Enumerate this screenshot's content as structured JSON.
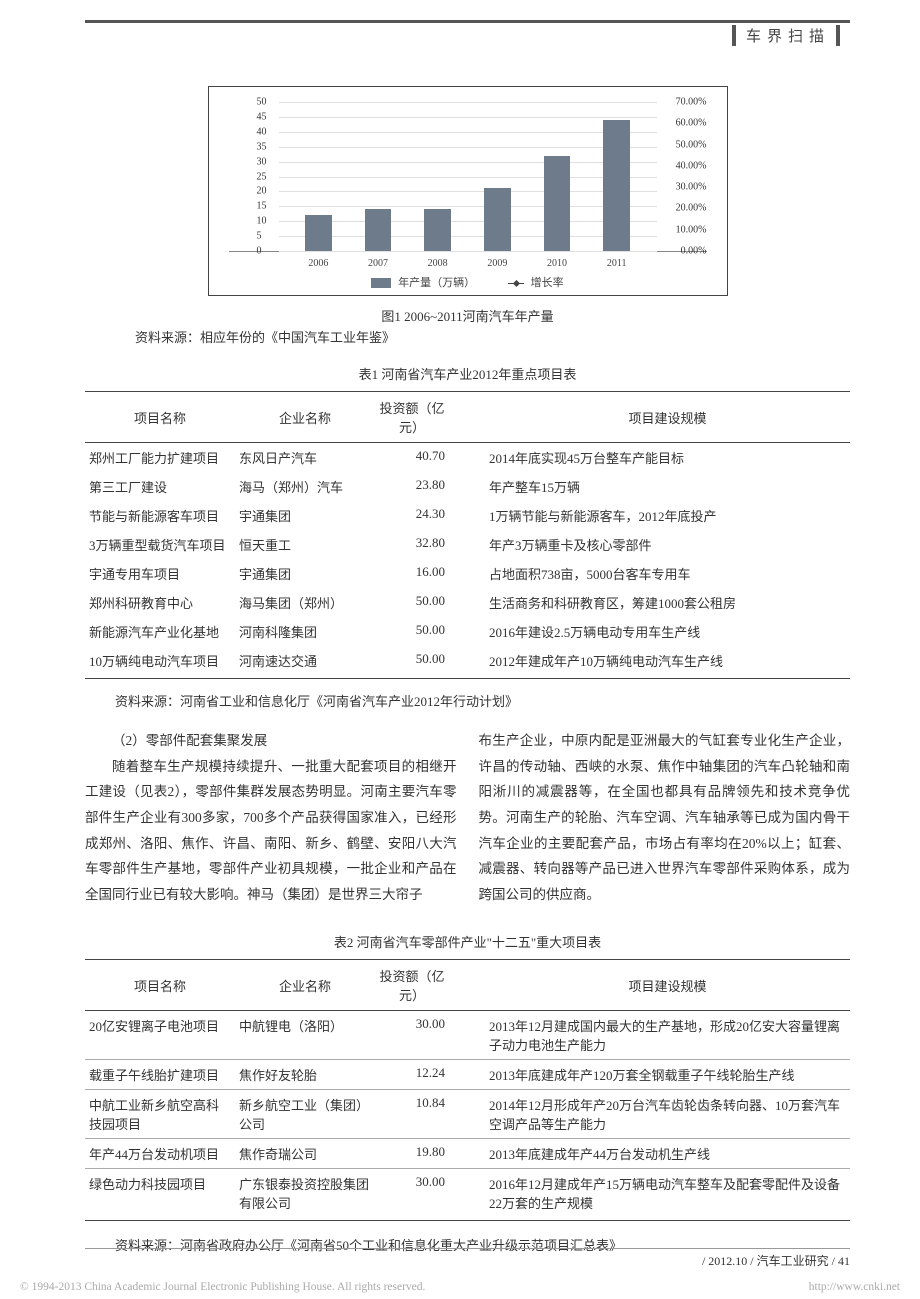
{
  "page": {
    "section_header": "车界扫描",
    "issue": "2012.10",
    "journal": "汽车工业研究",
    "page_number": "41",
    "copyright": "© 1994-2013 China Academic Journal Electronic Publishing House. All rights reserved.",
    "cnki_url": "http://www.cnki.net"
  },
  "chart1": {
    "type": "bar+line",
    "caption": "图1  2006~2011河南汽车年产量",
    "source": "资料来源：相应年份的《中国汽车工业年鉴》",
    "x_categories": [
      "2006",
      "2007",
      "2008",
      "2009",
      "2010",
      "2011"
    ],
    "left_y": {
      "min": 0,
      "max": 50,
      "step": 5
    },
    "right_y": {
      "min": 0,
      "max": 0.7,
      "step": 0.1,
      "labels": [
        "0.00%",
        "10.00%",
        "20.00%",
        "30.00%",
        "40.00%",
        "50.00%",
        "60.00%",
        "70.00%"
      ]
    },
    "bar_values": [
      12,
      14,
      14,
      21,
      32,
      44
    ],
    "bar_color": "#6e7b8b",
    "bar_width_pct": 7.5,
    "legend": {
      "bar": "年产量（万辆）",
      "line": "增长率"
    },
    "font_size": 10,
    "grid_color": "#e0e0e0",
    "border_color": "#444444",
    "background_color": "#ffffff"
  },
  "table1": {
    "title": "表1  河南省汽车产业2012年重点项目表",
    "columns": [
      "项目名称",
      "企业名称",
      "投资额（亿元）",
      "项目建设规模"
    ],
    "rows": [
      [
        "郑州工厂能力扩建项目",
        "东风日产汽车",
        "40.70",
        "2014年底实现45万台整车产能目标"
      ],
      [
        "第三工厂建设",
        "海马（郑州）汽车",
        "23.80",
        "年产整车15万辆"
      ],
      [
        "节能与新能源客车项目",
        "宇通集团",
        "24.30",
        "1万辆节能与新能源客车，2012年底投产"
      ],
      [
        "3万辆重型载货汽车项目",
        "恒天重工",
        "32.80",
        "年产3万辆重卡及核心零部件"
      ],
      [
        "宇通专用车项目",
        "宇通集团",
        "16.00",
        "占地面积738亩，5000台客车专用车"
      ],
      [
        "郑州科研教育中心",
        "海马集团（郑州）",
        "50.00",
        "生活商务和科研教育区，筹建1000套公租房"
      ],
      [
        "新能源汽车产业化基地",
        "河南科隆集团",
        "50.00",
        "2016年建设2.5万辆电动专用车生产线"
      ],
      [
        "10万辆纯电动汽车项目",
        "河南速达交通",
        "50.00",
        "2012年建成年产10万辆纯电动汽车生产线"
      ]
    ],
    "source": "资料来源：河南省工业和信息化厅《河南省汽车产业2012年行动计划》"
  },
  "body": {
    "heading": "（2）零部件配套集聚发展",
    "left_para": "随着整车生产规模持续提升、一批重大配套项目的相继开工建设（见表2），零部件集群发展态势明显。河南主要汽车零部件生产企业有300多家，700多个产品获得国家准入，已经形成郑州、洛阳、焦作、许昌、南阳、新乡、鹤壁、安阳八大汽车零部件生产基地，零部件产业初具规模，一批企业和产品在全国同行业已有较大影响。神马（集团）是世界三大帘子",
    "right_para": "布生产企业，中原内配是亚洲最大的气缸套专业化生产企业，许昌的传动轴、西峡的水泵、焦作中轴集团的汽车凸轮轴和南阳淅川的减震器等，在全国也都具有品牌领先和技术竞争优势。河南生产的轮胎、汽车空调、汽车轴承等已成为国内骨干汽车企业的主要配套产品，市场占有率均在20%以上；缸套、减震器、转向器等产品已进入世界汽车零部件采购体系，成为跨国公司的供应商。"
  },
  "table2": {
    "title": "表2  河南省汽车零部件产业\"十二五\"重大项目表",
    "columns": [
      "项目名称",
      "企业名称",
      "投资额（亿元）",
      "项目建设规模"
    ],
    "rows": [
      [
        "20亿安锂离子电池项目",
        "中航锂电（洛阳）",
        "30.00",
        "2013年12月建成国内最大的生产基地，形成20亿安大容量锂离子动力电池生产能力"
      ],
      [
        "载重子午线胎扩建项目",
        "焦作好友轮胎",
        "12.24",
        "2013年底建成年产120万套全钢载重子午线轮胎生产线"
      ],
      [
        "中航工业新乡航空高科技园项目",
        "新乡航空工业（集团）公司",
        "10.84",
        "2014年12月形成年产20万台汽车齿轮齿条转向器、10万套汽车空调产品等生产能力"
      ],
      [
        "年产44万台发动机项目",
        "焦作奇瑞公司",
        "19.80",
        "2013年底建成年产44万台发动机生产线"
      ],
      [
        "绿色动力科技园项目",
        "广东银泰投资控股集团有限公司",
        "30.00",
        "2016年12月建成年产15万辆电动汽车整车及配套零配件及设备22万套的生产规模"
      ]
    ],
    "source": "资料来源：河南省政府办公厅《河南省50个工业和信息化重大产业升级示范项目汇总表》"
  }
}
